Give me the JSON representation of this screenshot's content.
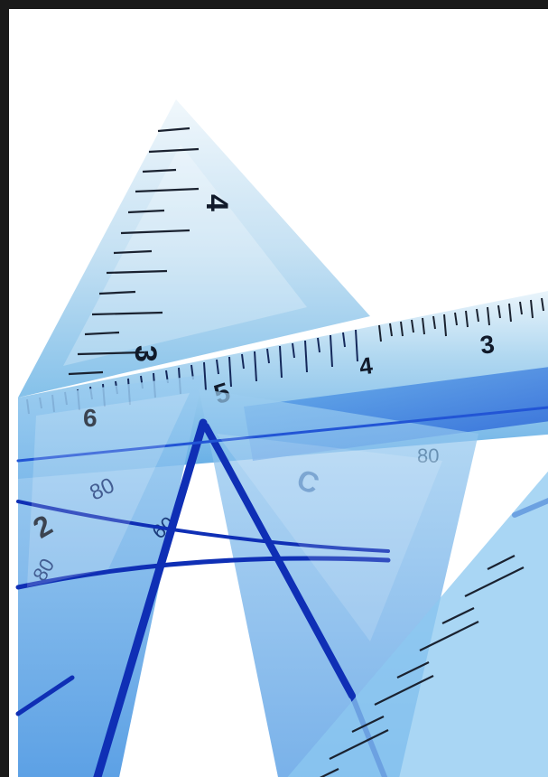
{
  "photo": {
    "subject": "",
    "ruler_numbers": {
      "triangle_a": [
        "4",
        "3",
        "6",
        "5",
        "2"
      ],
      "straight_ruler": [
        "4",
        "3"
      ],
      "protractor_marks": [
        "80",
        "80",
        "80",
        "60",
        "C"
      ]
    },
    "colors": {
      "border": "#1a1a1a",
      "background": "#ffffff",
      "plastic_light": "#cfe6f5",
      "plastic_mid": "#7fc1ea",
      "plastic_deep": "#1f63d8",
      "edge_dark": "#0f2fb5",
      "ink": "#111a2a"
    }
  }
}
